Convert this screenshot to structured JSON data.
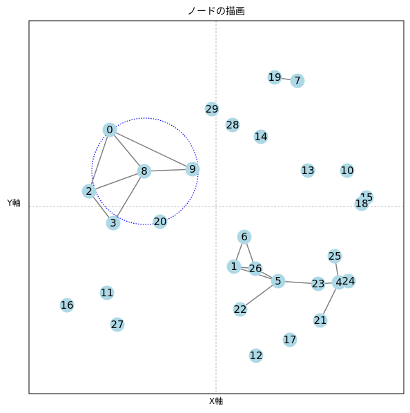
{
  "title": "ノードの描画",
  "x_label": "X軸",
  "y_label": "Y軸",
  "nodes": [
    {
      "label": "0"
    },
    {
      "label": "1"
    },
    {
      "label": "2"
    },
    {
      "label": "3"
    },
    {
      "label": "4"
    },
    {
      "label": "5"
    },
    {
      "label": "6"
    },
    {
      "label": "7"
    },
    {
      "label": "8"
    },
    {
      "label": "9"
    },
    {
      "label": "10"
    },
    {
      "label": "11"
    },
    {
      "label": "12"
    },
    {
      "label": "13"
    },
    {
      "label": "14"
    },
    {
      "label": "15"
    },
    {
      "label": "16"
    },
    {
      "label": "17"
    },
    {
      "label": "18"
    },
    {
      "label": "19"
    },
    {
      "label": "20"
    },
    {
      "label": "21"
    },
    {
      "label": "22"
    },
    {
      "label": "23"
    },
    {
      "label": "24"
    },
    {
      "label": "25"
    },
    {
      "label": "26"
    },
    {
      "label": "27"
    },
    {
      "label": "28"
    },
    {
      "label": "29"
    }
  ]
}
